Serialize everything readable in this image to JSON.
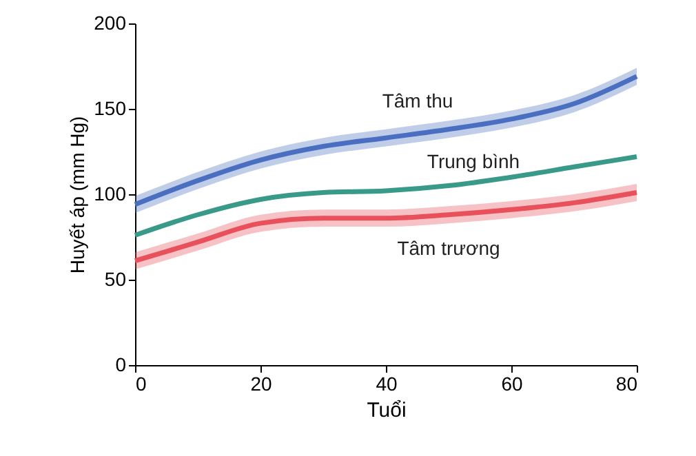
{
  "chart_data": {
    "type": "line",
    "xlabel": "Tuổi",
    "ylabel": "Huyết áp (mm Hg)",
    "xlim": [
      0,
      80
    ],
    "xticks": [
      0,
      20,
      40,
      60,
      80
    ],
    "ylim": [
      0,
      200
    ],
    "yticks": [
      0,
      50,
      100,
      150,
      200
    ],
    "grid": false,
    "line_style": "solid",
    "marker": "none",
    "x": [
      0,
      10,
      20,
      30,
      40,
      50,
      60,
      70,
      80
    ],
    "series": [
      {
        "name": "Tâm thu",
        "color": "#4a6fc0",
        "values": [
          94,
          108,
          120,
          128,
          133,
          138,
          144,
          153,
          169
        ],
        "lower": [
          89,
          103,
          115,
          123,
          128,
          133,
          139,
          148,
          164
        ],
        "upper": [
          99,
          113,
          125,
          133,
          138,
          143,
          149,
          158,
          174
        ]
      },
      {
        "name": "Trung bình",
        "color": "#3a9a8a",
        "values": [
          76,
          88,
          97,
          101,
          102,
          105,
          110,
          116,
          122
        ]
      },
      {
        "name": "Tâm trương",
        "color": "#e8505b",
        "values": [
          61,
          72,
          83,
          86,
          86,
          88,
          91,
          95,
          101
        ],
        "lower": [
          56,
          67,
          78,
          81,
          81,
          83,
          86,
          90,
          96
        ],
        "upper": [
          66,
          77,
          88,
          91,
          91,
          93,
          96,
          100,
          106
        ]
      }
    ]
  }
}
